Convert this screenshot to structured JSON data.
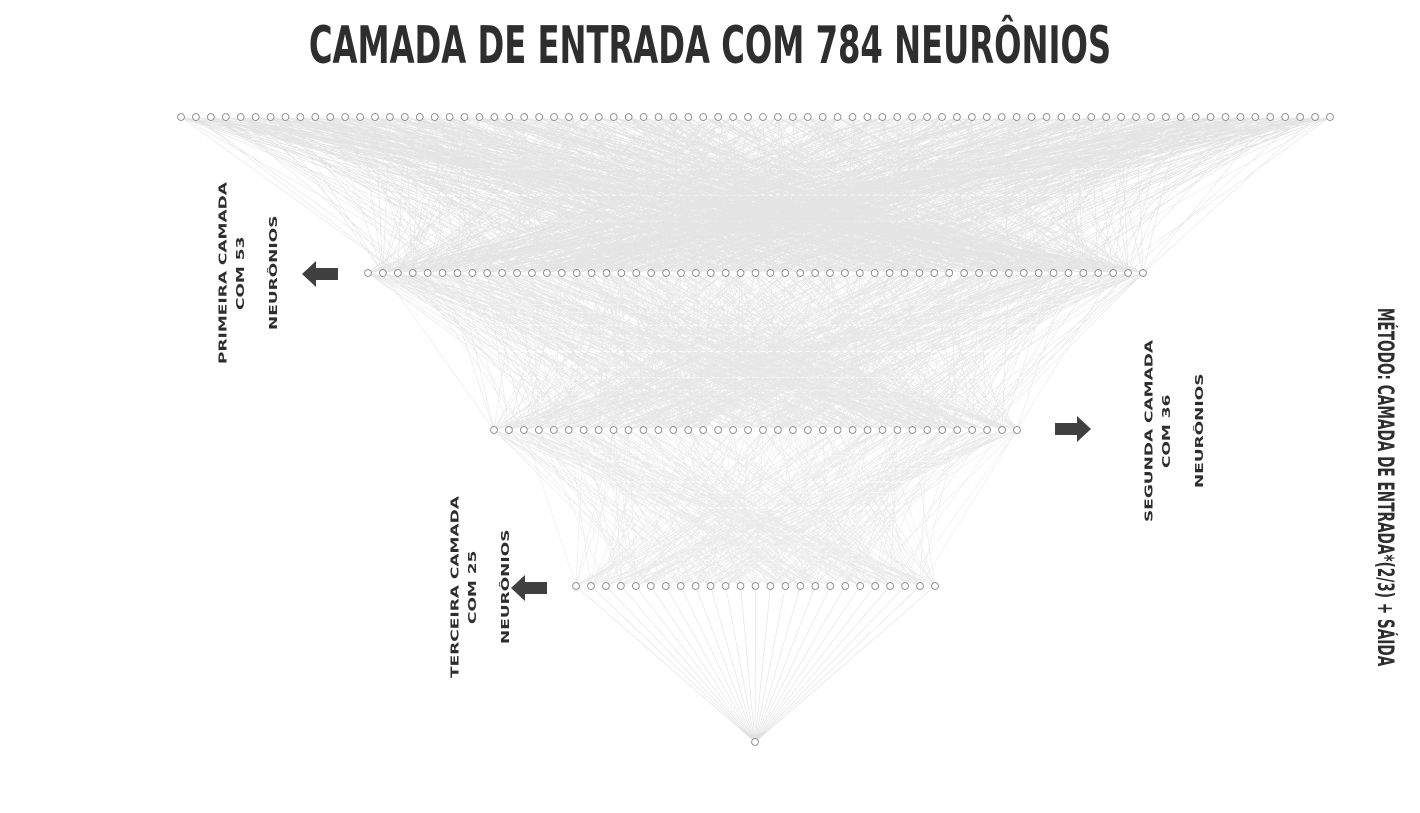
{
  "title": "CAMADA DE ENTRADA COM 784 NEURÔNIOS",
  "method": "MÉTODO: CAMADA DE ENTRADA*(2/3) + SÁIDA",
  "labels": {
    "layer1_line1": "PRIMEIRA CAMADA COM 53",
    "layer1_line2": "NEURÔNIOS",
    "layer2_line1": "SEGUNDA CAMADA COM 36",
    "layer2_line2": "NEURÔNIOS",
    "layer3_line1": "TERCEIRA CAMADA COM 25",
    "layer3_line2": "NEURÔNIOS"
  },
  "layers": [
    {
      "name": "input",
      "shown_nodes": 78
    },
    {
      "name": "primeira",
      "shown_nodes": 53
    },
    {
      "name": "segunda",
      "shown_nodes": 36
    },
    {
      "name": "terceira",
      "shown_nodes": 25
    },
    {
      "name": "saida",
      "shown_nodes": 1
    }
  ],
  "colors": {
    "text": "#2e2e2e",
    "edge": "#555555",
    "node_stroke": "#888888",
    "arrow": "#404040"
  }
}
